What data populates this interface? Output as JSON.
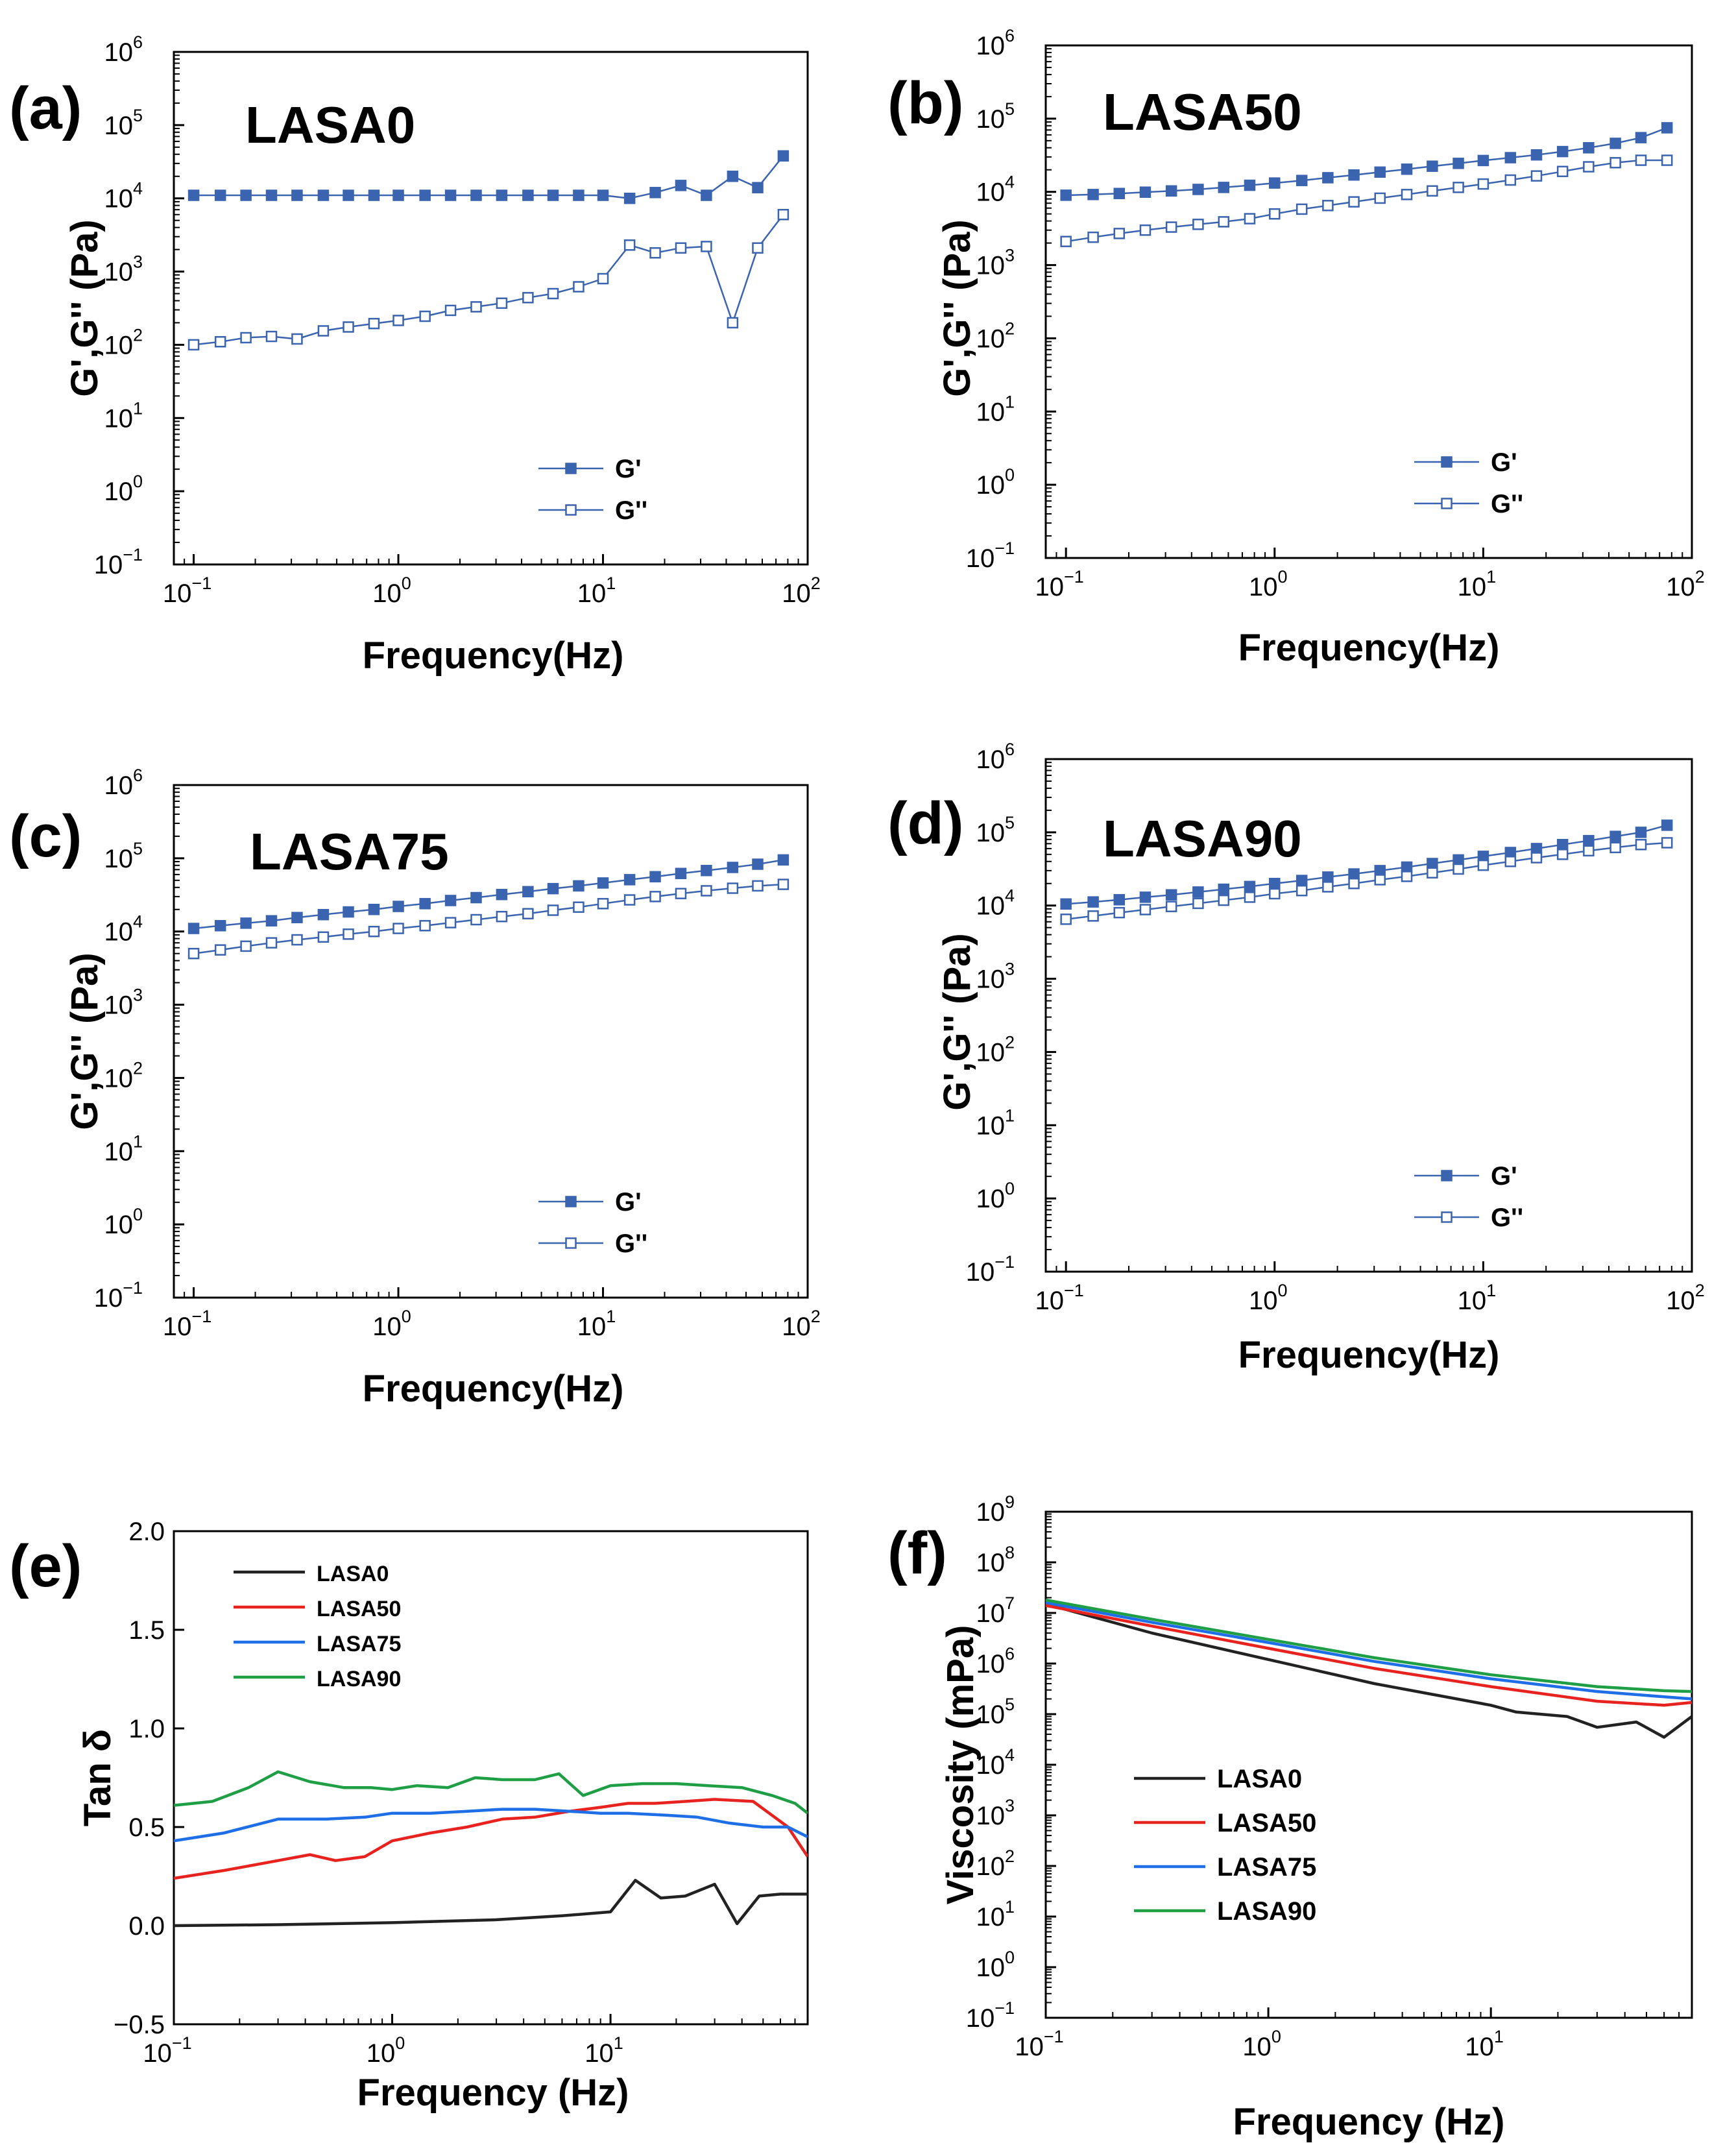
{
  "figure": {
    "description_label": "Rheology figure"
  },
  "chart_data": [
    {
      "id": "a",
      "type": "scatter",
      "panel_label": "(a)",
      "title": "LASA0",
      "xlabel": "Frequency(Hz)",
      "ylabel": "G',G'' (Pa)",
      "xscale": "log",
      "yscale": "log",
      "xlim": [
        0.08,
        100
      ],
      "ylim": [
        0.1,
        1000000
      ],
      "xticks": [
        0.1,
        1,
        10,
        100
      ],
      "yticks": [
        0.1,
        1,
        10,
        100,
        1000,
        10000,
        100000,
        1000000
      ],
      "legend_position": "lower-right",
      "series": [
        {
          "name": "G'",
          "marker": "filled-square",
          "color": "#3a64b0",
          "x": [
            0.1,
            0.135,
            0.18,
            0.24,
            0.32,
            0.43,
            0.57,
            0.76,
            1.0,
            1.35,
            1.8,
            2.4,
            3.2,
            4.3,
            5.7,
            7.6,
            10,
            13.5,
            18,
            24,
            32,
            43,
            57,
            76
          ],
          "y": [
            11000,
            11000,
            11000,
            11000,
            11000,
            11000,
            11000,
            11000,
            11000,
            11000,
            11000,
            11000,
            11000,
            11000,
            11000,
            11000,
            11000,
            10000,
            12000,
            15000,
            11000,
            20000,
            14000,
            38000
          ]
        },
        {
          "name": "G''",
          "marker": "open-square",
          "color": "#3a64b0",
          "x": [
            0.1,
            0.135,
            0.18,
            0.24,
            0.32,
            0.43,
            0.57,
            0.76,
            1.0,
            1.35,
            1.8,
            2.4,
            3.2,
            4.3,
            5.7,
            7.6,
            10,
            13.5,
            18,
            24,
            32,
            43,
            57,
            76
          ],
          "y": [
            100,
            110,
            125,
            130,
            120,
            155,
            175,
            195,
            215,
            245,
            295,
            330,
            370,
            440,
            500,
            620,
            800,
            2300,
            1800,
            2100,
            2200,
            200,
            2100,
            6000
          ]
        }
      ]
    },
    {
      "id": "b",
      "type": "scatter",
      "panel_label": "(b)",
      "title": "LASA50",
      "xlabel": "Frequency(Hz)",
      "ylabel": "G',G'' (Pa)",
      "xscale": "log",
      "yscale": "log",
      "xlim": [
        0.08,
        100
      ],
      "ylim": [
        0.1,
        1000000
      ],
      "xticks": [
        0.1,
        1,
        10,
        100
      ],
      "yticks": [
        0.1,
        1,
        10,
        100,
        1000,
        10000,
        100000,
        1000000
      ],
      "legend_position": "middle-right",
      "series": [
        {
          "name": "G'",
          "marker": "filled-square",
          "color": "#3a64b0",
          "x": [
            0.1,
            0.135,
            0.18,
            0.24,
            0.32,
            0.43,
            0.57,
            0.76,
            1.0,
            1.35,
            1.8,
            2.4,
            3.2,
            4.3,
            5.7,
            7.6,
            10,
            13.5,
            18,
            24,
            32,
            43,
            57,
            76
          ],
          "y": [
            9000,
            9200,
            9500,
            9900,
            10300,
            10800,
            11500,
            12300,
            13200,
            14300,
            15600,
            17000,
            18600,
            20400,
            22400,
            24500,
            26800,
            29300,
            32000,
            35500,
            40000,
            46000,
            55000,
            75000
          ]
        },
        {
          "name": "G''",
          "marker": "open-square",
          "color": "#3a64b0",
          "x": [
            0.1,
            0.135,
            0.18,
            0.24,
            0.32,
            0.43,
            0.57,
            0.76,
            1.0,
            1.35,
            1.8,
            2.4,
            3.2,
            4.3,
            5.7,
            7.6,
            10,
            13.5,
            18,
            24,
            32,
            43,
            57,
            76
          ],
          "y": [
            2100,
            2400,
            2700,
            3000,
            3300,
            3600,
            3900,
            4300,
            5000,
            5800,
            6500,
            7300,
            8200,
            9200,
            10300,
            11500,
            12800,
            14500,
            16500,
            19000,
            22000,
            25000,
            27000,
            27000
          ]
        }
      ]
    },
    {
      "id": "c",
      "type": "scatter",
      "panel_label": "(c)",
      "title": "LASA75",
      "xlabel": "Frequency(Hz)",
      "ylabel": "G',G'' (Pa)",
      "xscale": "log",
      "yscale": "log",
      "xlim": [
        0.08,
        100
      ],
      "ylim": [
        0.1,
        1000000
      ],
      "xticks": [
        0.1,
        1,
        10,
        100
      ],
      "yticks": [
        0.1,
        1,
        10,
        100,
        1000,
        10000,
        100000,
        1000000
      ],
      "legend_position": "lower-right",
      "series": [
        {
          "name": "G'",
          "marker": "filled-square",
          "color": "#3a64b0",
          "x": [
            0.1,
            0.135,
            0.18,
            0.24,
            0.32,
            0.43,
            0.57,
            0.76,
            1.0,
            1.35,
            1.8,
            2.4,
            3.2,
            4.3,
            5.7,
            7.6,
            10,
            13.5,
            18,
            24,
            32,
            43,
            57,
            76
          ],
          "y": [
            11000,
            12000,
            13000,
            14000,
            15500,
            17000,
            18500,
            20000,
            22000,
            24000,
            26500,
            29000,
            32000,
            35000,
            38500,
            42000,
            46000,
            51000,
            56000,
            62000,
            68000,
            75000,
            83000,
            95000
          ]
        },
        {
          "name": "G''",
          "marker": "open-square",
          "color": "#3a64b0",
          "x": [
            0.1,
            0.135,
            0.18,
            0.24,
            0.32,
            0.43,
            0.57,
            0.76,
            1.0,
            1.35,
            1.8,
            2.4,
            3.2,
            4.3,
            5.7,
            7.6,
            10,
            13.5,
            18,
            24,
            32,
            43,
            57,
            76
          ],
          "y": [
            5000,
            5600,
            6300,
            7000,
            7700,
            8400,
            9200,
            10000,
            11000,
            12000,
            13200,
            14500,
            16000,
            17500,
            19500,
            21500,
            24000,
            27000,
            30000,
            33000,
            36000,
            39000,
            42000,
            44000
          ]
        }
      ]
    },
    {
      "id": "d",
      "type": "scatter",
      "panel_label": "(d)",
      "title": "LASA90",
      "xlabel": "Frequency(Hz)",
      "ylabel": "G',G'' (Pa)",
      "xscale": "log",
      "yscale": "log",
      "xlim": [
        0.08,
        100
      ],
      "ylim": [
        0.1,
        1000000
      ],
      "xticks": [
        0.1,
        1,
        10,
        100
      ],
      "yticks": [
        0.1,
        1,
        10,
        100,
        1000,
        10000,
        100000,
        1000000
      ],
      "legend_position": "lower-right",
      "series": [
        {
          "name": "G'",
          "marker": "filled-square",
          "color": "#3a64b0",
          "x": [
            0.1,
            0.135,
            0.18,
            0.24,
            0.32,
            0.43,
            0.57,
            0.76,
            1.0,
            1.35,
            1.8,
            2.4,
            3.2,
            4.3,
            5.7,
            7.6,
            10,
            13.5,
            18,
            24,
            32,
            43,
            57,
            76
          ],
          "y": [
            10500,
            11200,
            12000,
            13000,
            14000,
            15300,
            16700,
            18200,
            20000,
            22000,
            24500,
            27000,
            30000,
            33500,
            37500,
            42000,
            47000,
            53000,
            60000,
            68000,
            77000,
            88000,
            100000,
            125000
          ]
        },
        {
          "name": "G''",
          "marker": "open-square",
          "color": "#3a64b0",
          "x": [
            0.1,
            0.135,
            0.18,
            0.24,
            0.32,
            0.43,
            0.57,
            0.76,
            1.0,
            1.35,
            1.8,
            2.4,
            3.2,
            4.3,
            5.7,
            7.6,
            10,
            13.5,
            18,
            24,
            32,
            43,
            57,
            76
          ],
          "y": [
            6500,
            7200,
            8000,
            8800,
            9700,
            10700,
            11800,
            13000,
            14500,
            16000,
            18000,
            20000,
            22500,
            25000,
            28000,
            31500,
            35500,
            40000,
            45000,
            50000,
            56000,
            62000,
            68000,
            72000
          ]
        }
      ]
    },
    {
      "id": "e",
      "type": "line",
      "panel_label": "(e)",
      "title": "",
      "xlabel": "Frequency (Hz)",
      "ylabel": "Tan δ",
      "xscale": "log",
      "yscale": "linear",
      "xlim": [
        0.1,
        80
      ],
      "ylim": [
        -0.5,
        2.0
      ],
      "xticks": [
        0.1,
        1,
        10
      ],
      "yticks": [
        -0.5,
        0.0,
        0.5,
        1.0,
        1.5,
        2.0
      ],
      "ytick_labels": [
        "−0.5",
        "0.0",
        "0.5",
        "1.0",
        "1.5",
        "2.0"
      ],
      "legend_position": "upper-left",
      "series": [
        {
          "name": "LASA0",
          "color": "#222222",
          "x": [
            0.1,
            0.3,
            1,
            3,
            6,
            10,
            13,
            17,
            22,
            30,
            38,
            48,
            60,
            80
          ],
          "y": [
            0.0,
            0.005,
            0.015,
            0.03,
            0.05,
            0.07,
            0.23,
            0.14,
            0.15,
            0.21,
            0.01,
            0.15,
            0.16,
            0.16
          ]
        },
        {
          "name": "LASA50",
          "color": "#e8231f",
          "x": [
            0.1,
            0.17,
            0.3,
            0.42,
            0.55,
            0.75,
            1.0,
            1.5,
            2.2,
            3.2,
            4.5,
            6.5,
            9,
            12,
            16,
            22,
            30,
            45,
            65,
            80
          ],
          "y": [
            0.24,
            0.28,
            0.33,
            0.36,
            0.33,
            0.35,
            0.43,
            0.47,
            0.5,
            0.54,
            0.55,
            0.58,
            0.6,
            0.62,
            0.62,
            0.63,
            0.64,
            0.63,
            0.5,
            0.35
          ]
        },
        {
          "name": "LASA75",
          "color": "#1e6ee8",
          "x": [
            0.1,
            0.17,
            0.3,
            0.5,
            0.75,
            1.0,
            1.5,
            2.2,
            3.2,
            4.5,
            6.5,
            9,
            12,
            18,
            25,
            35,
            50,
            65,
            80
          ],
          "y": [
            0.43,
            0.47,
            0.54,
            0.54,
            0.55,
            0.57,
            0.57,
            0.58,
            0.59,
            0.59,
            0.58,
            0.57,
            0.57,
            0.56,
            0.55,
            0.52,
            0.5,
            0.5,
            0.45
          ]
        },
        {
          "name": "LASA90",
          "color": "#1e9e45",
          "x": [
            0.1,
            0.15,
            0.22,
            0.3,
            0.42,
            0.6,
            0.8,
            1.0,
            1.3,
            1.8,
            2.4,
            3.2,
            4.5,
            5.8,
            7.5,
            10,
            14,
            20,
            28,
            40,
            55,
            70,
            80
          ],
          "y": [
            0.61,
            0.63,
            0.7,
            0.78,
            0.73,
            0.7,
            0.7,
            0.69,
            0.71,
            0.7,
            0.75,
            0.74,
            0.74,
            0.77,
            0.66,
            0.71,
            0.72,
            0.72,
            0.71,
            0.7,
            0.66,
            0.62,
            0.57
          ]
        }
      ]
    },
    {
      "id": "f",
      "type": "line",
      "panel_label": "(f)",
      "title": "",
      "xlabel": "Frequency (Hz)",
      "ylabel": "Viscosity (mPa)",
      "xscale": "log",
      "yscale": "log",
      "xlim": [
        0.1,
        80
      ],
      "ylim": [
        0.1,
        1000000000
      ],
      "xticks": [
        0.1,
        1,
        10
      ],
      "yticks": [
        0.1,
        1,
        10,
        100,
        1000,
        10000,
        100000,
        1000000,
        10000000,
        100000000,
        1000000000
      ],
      "legend_position": "center-left",
      "series": [
        {
          "name": "LASA0",
          "color": "#222222",
          "x": [
            0.1,
            0.3,
            1,
            3,
            10,
            13,
            22,
            30,
            45,
            60,
            80
          ],
          "y": [
            15000000,
            4000000,
            1200000,
            400000,
            150000,
            110000,
            90000,
            55000,
            70000,
            35000,
            90000
          ]
        },
        {
          "name": "LASA50",
          "color": "#e8231f",
          "x": [
            0.1,
            0.3,
            1,
            3,
            10,
            30,
            60,
            80
          ],
          "y": [
            14000000,
            5500000,
            2000000,
            800000,
            350000,
            180000,
            150000,
            170000
          ]
        },
        {
          "name": "LASA75",
          "color": "#1e6ee8",
          "x": [
            0.1,
            0.3,
            1,
            3,
            10,
            30,
            60,
            80
          ],
          "y": [
            16000000,
            6500000,
            2600000,
            1100000,
            500000,
            280000,
            220000,
            200000
          ]
        },
        {
          "name": "LASA90",
          "color": "#1e9e45",
          "x": [
            0.1,
            0.3,
            1,
            3,
            10,
            30,
            60,
            80
          ],
          "y": [
            18000000,
            7500000,
            3000000,
            1300000,
            600000,
            350000,
            290000,
            280000
          ]
        }
      ]
    }
  ]
}
